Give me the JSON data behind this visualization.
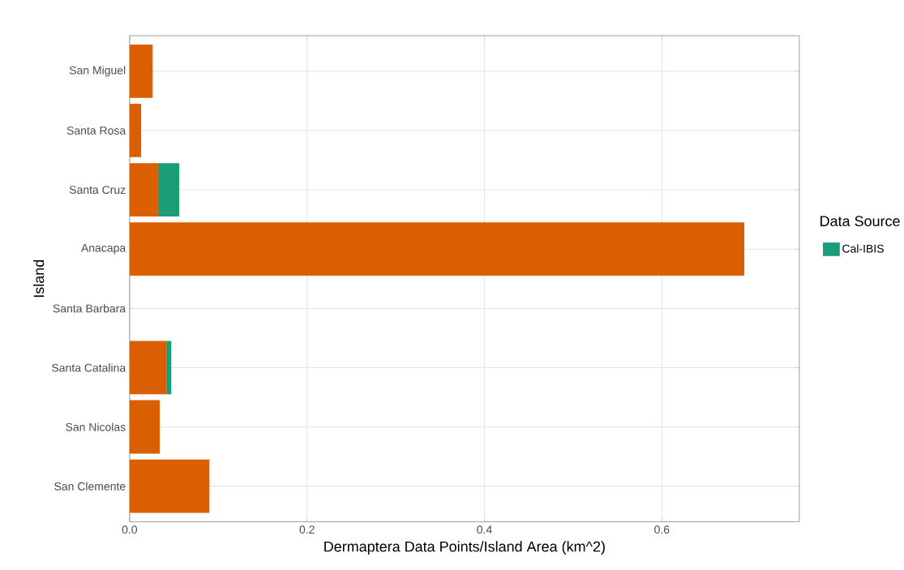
{
  "chart_data": {
    "type": "bar",
    "orientation": "horizontal",
    "stacked": true,
    "xlabel": "Dermaptera Data Points/Island Area (km^2)",
    "ylabel": "Island",
    "legend_title": "Data Source",
    "categories": [
      "San Miguel",
      "Santa Rosa",
      "Santa Cruz",
      "Anacapa",
      "Santa Barbara",
      "Santa Catalina",
      "San Nicolas",
      "San Clemente"
    ],
    "series": [
      {
        "color": "#d95f02",
        "values": [
          0.026,
          0.013,
          0.032,
          0.693,
          0,
          0.042,
          0.034,
          0.09
        ]
      },
      {
        "name": "Cal-IBIS",
        "color": "#1b9e77",
        "values": [
          0,
          0,
          0.024,
          0,
          0,
          0.005,
          0,
          0
        ]
      }
    ],
    "xlim": [
      0,
      0.755
    ],
    "xticks": [
      {
        "value": 0,
        "label": "0.0"
      },
      {
        "value": 0.2,
        "label": "0.2"
      },
      {
        "value": 0.4,
        "label": "0.4"
      },
      {
        "value": 0.6,
        "label": "0.6"
      }
    ],
    "grid": true,
    "legend": "right"
  }
}
